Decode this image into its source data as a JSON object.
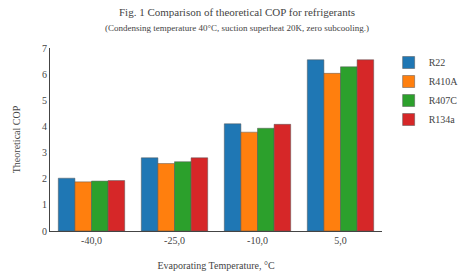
{
  "chart_data": {
    "type": "bar",
    "title": "Fig. 1 Comparison of theoretical COP for refrigerants",
    "subtitle": "(Condensing temperature 40°C, suction superheat 20K, zero subcooling.)",
    "xlabel": "Evaporating Temperature, °C",
    "ylabel": "Theoretical COP",
    "categories": [
      "-40,0",
      "-25,0",
      "-10,0",
      "5,0"
    ],
    "series": [
      {
        "name": "R22",
        "values": [
          2.02,
          2.8,
          4.1,
          6.55
        ]
      },
      {
        "name": "R410A",
        "values": [
          1.88,
          2.58,
          3.78,
          6.03
        ]
      },
      {
        "name": "R407C",
        "values": [
          1.91,
          2.65,
          3.93,
          6.28
        ]
      },
      {
        "name": "R134a",
        "values": [
          1.93,
          2.8,
          4.08,
          6.55
        ]
      }
    ],
    "ylim": [
      0,
      7
    ],
    "yticks": [
      0,
      1,
      2,
      3,
      4,
      5,
      6,
      7
    ],
    "grid": false,
    "legend": "right"
  }
}
